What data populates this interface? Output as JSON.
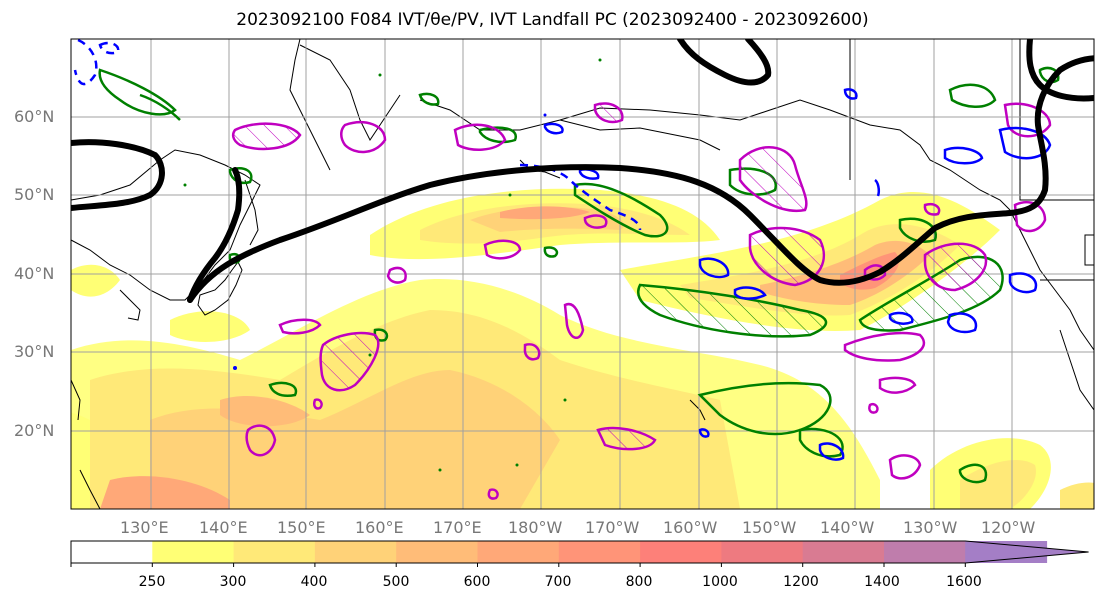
{
  "title": "2023092100 F084 IVT/θe/PV, IVT Landfall PC (2023092400 - 2023092600)",
  "lat_labels": [
    "60°N",
    "50°N",
    "40°N",
    "30°N",
    "20°N"
  ],
  "lon_labels": [
    "130°E",
    "140°E",
    "150°E",
    "160°E",
    "170°E",
    "180°W",
    "170°W",
    "160°W",
    "150°W",
    "140°W",
    "130°W",
    "120°W"
  ],
  "colorbar": {
    "ticks": [
      "250",
      "300",
      "400",
      "500",
      "600",
      "700",
      "800",
      "1000",
      "1200",
      "1400",
      "1600"
    ],
    "colors": [
      "#ffffff",
      "#ffff75",
      "#ffe978",
      "#ffd278",
      "#ffbc78",
      "#ffa878",
      "#ff9478",
      "#fd8079",
      "#ee7a80",
      "#d97b92",
      "#bf7dac",
      "#a47ec6"
    ],
    "extend": "max"
  },
  "legend_colors": {
    "ivt_pc_contour": "#000000",
    "theta_e_contours": "#008000",
    "pv_contours": "#c000c0",
    "negative_contours": "#0000ff"
  }
}
